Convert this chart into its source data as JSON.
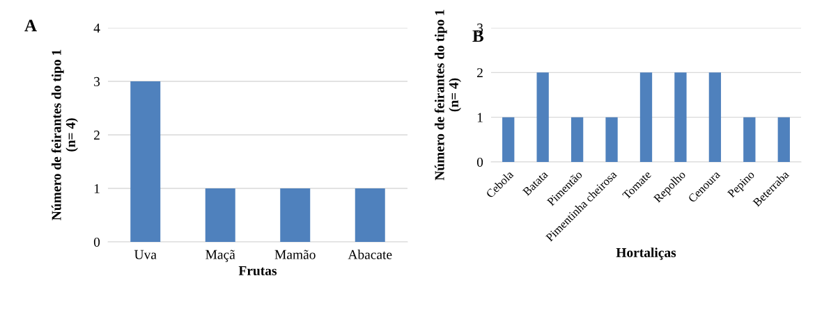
{
  "chart_data": [
    {
      "type": "bar",
      "title": "A",
      "xlabel": "Frutas",
      "ylabel": "Número de feirantes do tipo 1\n(n= 4)",
      "categories": [
        "Uva",
        "Maçã",
        "Mamão",
        "Abacate"
      ],
      "values": [
        3,
        1,
        1,
        1
      ],
      "color": "#4f81bd",
      "ylim": [
        0,
        4
      ],
      "yticks": [
        0,
        1,
        2,
        3,
        4
      ],
      "grid": "y",
      "legend": false
    },
    {
      "type": "bar",
      "title": "B",
      "xlabel": "Hortaliças",
      "ylabel": "Número de feirantes do tipo 1\n(n= 4)",
      "categories": [
        "Cebola",
        "Batata",
        "Pimentão",
        "Pimentinha cheirosa",
        "Tomate",
        "Repolho",
        "Cenoura",
        "Pepino",
        "Beterraba"
      ],
      "values": [
        1,
        2,
        1,
        1,
        2,
        2,
        2,
        1,
        1
      ],
      "color": "#4f81bd",
      "ylim": [
        0,
        3
      ],
      "yticks": [
        0,
        1,
        2,
        3
      ],
      "grid": "y",
      "legend": false
    }
  ]
}
